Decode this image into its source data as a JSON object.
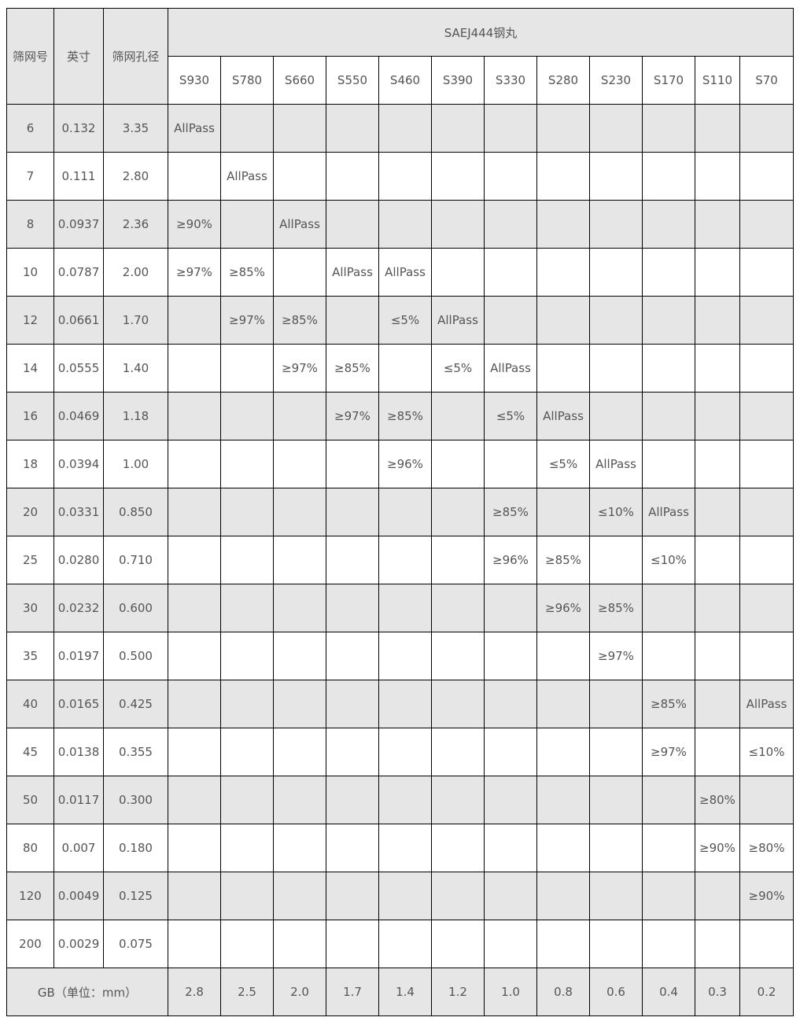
{
  "header": {
    "col_mesh": "筛网号",
    "col_inch": "英寸",
    "col_aperture": "筛网孔径",
    "group_title": "SAEJ444钢丸",
    "grades": [
      "S930",
      "S780",
      "S660",
      "S550",
      "S460",
      "S390",
      "S330",
      "S280",
      "S230",
      "S170",
      "S110",
      "S70"
    ]
  },
  "rows": [
    {
      "mesh": "6",
      "inch": "0.132",
      "aperture": "3.35",
      "cells": [
        "AllPass",
        "",
        "",
        "",
        "",
        "",
        "",
        "",
        "",
        "",
        "",
        ""
      ]
    },
    {
      "mesh": "7",
      "inch": "0.111",
      "aperture": "2.80",
      "cells": [
        "",
        "AllPass",
        "",
        "",
        "",
        "",
        "",
        "",
        "",
        "",
        "",
        ""
      ]
    },
    {
      "mesh": "8",
      "inch": "0.0937",
      "aperture": "2.36",
      "cells": [
        "≥90%",
        "",
        "AllPass",
        "",
        "",
        "",
        "",
        "",
        "",
        "",
        "",
        ""
      ]
    },
    {
      "mesh": "10",
      "inch": "0.0787",
      "aperture": "2.00",
      "cells": [
        "≥97%",
        "≥85%",
        "",
        "AllPass",
        "AllPass",
        "",
        "",
        "",
        "",
        "",
        "",
        ""
      ]
    },
    {
      "mesh": "12",
      "inch": "0.0661",
      "aperture": "1.70",
      "cells": [
        "",
        "≥97%",
        "≥85%",
        "",
        "≤5%",
        "AllPass",
        "",
        "",
        "",
        "",
        "",
        ""
      ]
    },
    {
      "mesh": "14",
      "inch": "0.0555",
      "aperture": "1.40",
      "cells": [
        "",
        "",
        "≥97%",
        "≥85%",
        "",
        "≤5%",
        "AllPass",
        "",
        "",
        "",
        "",
        ""
      ]
    },
    {
      "mesh": "16",
      "inch": "0.0469",
      "aperture": "1.18",
      "cells": [
        "",
        "",
        "",
        "≥97%",
        "≥85%",
        "",
        "≤5%",
        "AllPass",
        "",
        "",
        "",
        ""
      ]
    },
    {
      "mesh": "18",
      "inch": "0.0394",
      "aperture": "1.00",
      "cells": [
        "",
        "",
        "",
        "",
        "≥96%",
        "",
        "",
        "≤5%",
        "AllPass",
        "",
        "",
        ""
      ]
    },
    {
      "mesh": "20",
      "inch": "0.0331",
      "aperture": "0.850",
      "cells": [
        "",
        "",
        "",
        "",
        "",
        "",
        "≥85%",
        "",
        "≤10%",
        "AllPass",
        "",
        ""
      ]
    },
    {
      "mesh": "25",
      "inch": "0.0280",
      "aperture": "0.710",
      "cells": [
        "",
        "",
        "",
        "",
        "",
        "",
        "≥96%",
        "≥85%",
        "",
        "≤10%",
        "",
        ""
      ]
    },
    {
      "mesh": "30",
      "inch": "0.0232",
      "aperture": "0.600",
      "cells": [
        "",
        "",
        "",
        "",
        "",
        "",
        "",
        "≥96%",
        "≥85%",
        "",
        "",
        ""
      ]
    },
    {
      "mesh": "35",
      "inch": "0.0197",
      "aperture": "0.500",
      "cells": [
        "",
        "",
        "",
        "",
        "",
        "",
        "",
        "",
        "≥97%",
        "",
        "",
        ""
      ]
    },
    {
      "mesh": "40",
      "inch": "0.0165",
      "aperture": "0.425",
      "cells": [
        "",
        "",
        "",
        "",
        "",
        "",
        "",
        "",
        "",
        "≥85%",
        "",
        "AllPass"
      ]
    },
    {
      "mesh": "45",
      "inch": "0.0138",
      "aperture": "0.355",
      "cells": [
        "",
        "",
        "",
        "",
        "",
        "",
        "",
        "",
        "",
        "≥97%",
        "",
        "≤10%"
      ]
    },
    {
      "mesh": "50",
      "inch": "0.0117",
      "aperture": "0.300",
      "cells": [
        "",
        "",
        "",
        "",
        "",
        "",
        "",
        "",
        "",
        "",
        "≥80%",
        ""
      ]
    },
    {
      "mesh": "80",
      "inch": "0.007",
      "aperture": "0.180",
      "cells": [
        "",
        "",
        "",
        "",
        "",
        "",
        "",
        "",
        "",
        "",
        "≥90%",
        "≥80%"
      ]
    },
    {
      "mesh": "120",
      "inch": "0.0049",
      "aperture": "0.125",
      "cells": [
        "",
        "",
        "",
        "",
        "",
        "",
        "",
        "",
        "",
        "",
        "",
        "≥90%"
      ]
    },
    {
      "mesh": "200",
      "inch": "0.0029",
      "aperture": "0.075",
      "cells": [
        "",
        "",
        "",
        "",
        "",
        "",
        "",
        "",
        "",
        "",
        "",
        ""
      ]
    }
  ],
  "footer": {
    "label": "GB（单位：mm）",
    "values": [
      "2.8",
      "2.5",
      "2.0",
      "1.7",
      "1.4",
      "1.2",
      "1.0",
      "0.8",
      "0.6",
      "0.4",
      "0.3",
      "0.2"
    ]
  },
  "colors": {
    "shaded_row": "#e6e6e6",
    "text": "#555555",
    "border": "#000000"
  }
}
